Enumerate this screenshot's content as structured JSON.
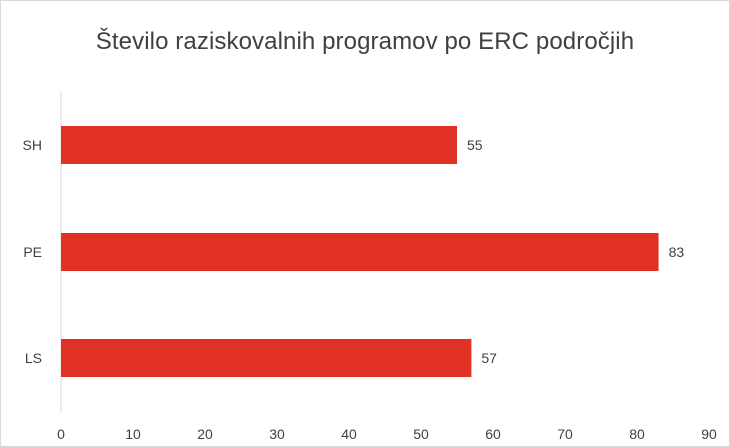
{
  "chart_data": {
    "type": "bar",
    "orientation": "horizontal",
    "title": "Število raziskovalnih programov po ERC področjih",
    "categories": [
      "SH",
      "PE",
      "LS"
    ],
    "values": [
      55,
      83,
      57
    ],
    "data_labels": [
      "55",
      "83",
      "57"
    ],
    "xlabel": "",
    "ylabel": "",
    "xlim": [
      0,
      90
    ],
    "x_ticks": [
      "0",
      "10",
      "20",
      "30",
      "40",
      "50",
      "60",
      "70",
      "80",
      "90"
    ],
    "grid": false,
    "legend": "none",
    "bar_color": "#e03124",
    "axis_color": "#d9d9d9"
  }
}
